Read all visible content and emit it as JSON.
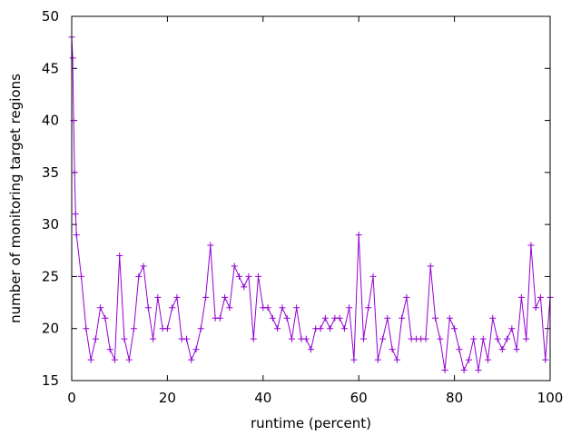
{
  "chart_data": {
    "type": "line",
    "title": "",
    "xlabel": "runtime (percent)",
    "ylabel": "number of monitoring target regions",
    "xlim": [
      0,
      100
    ],
    "ylim": [
      15,
      50
    ],
    "xticks": [
      "0",
      "20",
      "40",
      "60",
      "80",
      "100"
    ],
    "yticks": [
      "15",
      "20",
      "25",
      "30",
      "35",
      "40",
      "45",
      "50"
    ],
    "grid": false,
    "legend": "none",
    "series": [
      {
        "color": "#9400d3",
        "marker": "plus",
        "x": [
          0,
          0.2,
          0.4,
          0.6,
          0.8,
          1,
          2,
          3,
          4,
          5,
          6,
          7,
          8,
          9,
          10,
          11,
          12,
          13,
          14,
          15,
          16,
          17,
          18,
          19,
          20,
          21,
          22,
          23,
          24,
          25,
          26,
          27,
          28,
          29,
          30,
          31,
          32,
          33,
          34,
          35,
          36,
          37,
          38,
          39,
          40,
          41,
          42,
          43,
          44,
          45,
          46,
          47,
          48,
          49,
          50,
          51,
          52,
          53,
          54,
          55,
          56,
          57,
          58,
          59,
          60,
          61,
          62,
          63,
          64,
          65,
          66,
          67,
          68,
          69,
          70,
          71,
          72,
          73,
          74,
          75,
          76,
          77,
          78,
          79,
          80,
          81,
          82,
          83,
          84,
          85,
          86,
          87,
          88,
          89,
          90,
          91,
          92,
          93,
          94,
          95,
          96,
          97,
          98,
          99,
          100
        ],
        "y": [
          48,
          46,
          40,
          35,
          31,
          29,
          25,
          20,
          17,
          19,
          22,
          21,
          18,
          17,
          27,
          19,
          17,
          20,
          25,
          26,
          22,
          19,
          23,
          20,
          20,
          22,
          23,
          19,
          19,
          17,
          18,
          20,
          23,
          28,
          21,
          21,
          23,
          22,
          26,
          25,
          24,
          25,
          19,
          25,
          22,
          22,
          21,
          20,
          22,
          21,
          19,
          22,
          19,
          19,
          18,
          20,
          20,
          21,
          20,
          21,
          21,
          20,
          22,
          17,
          29,
          19,
          22,
          25,
          17,
          19,
          21,
          18,
          17,
          21,
          23,
          19,
          19,
          19,
          19,
          26,
          21,
          19,
          16,
          21,
          20,
          18,
          16,
          17,
          19,
          16,
          19,
          17,
          21,
          19,
          18,
          19,
          20,
          18,
          23,
          19,
          28,
          22,
          23,
          17,
          23
        ]
      }
    ]
  }
}
